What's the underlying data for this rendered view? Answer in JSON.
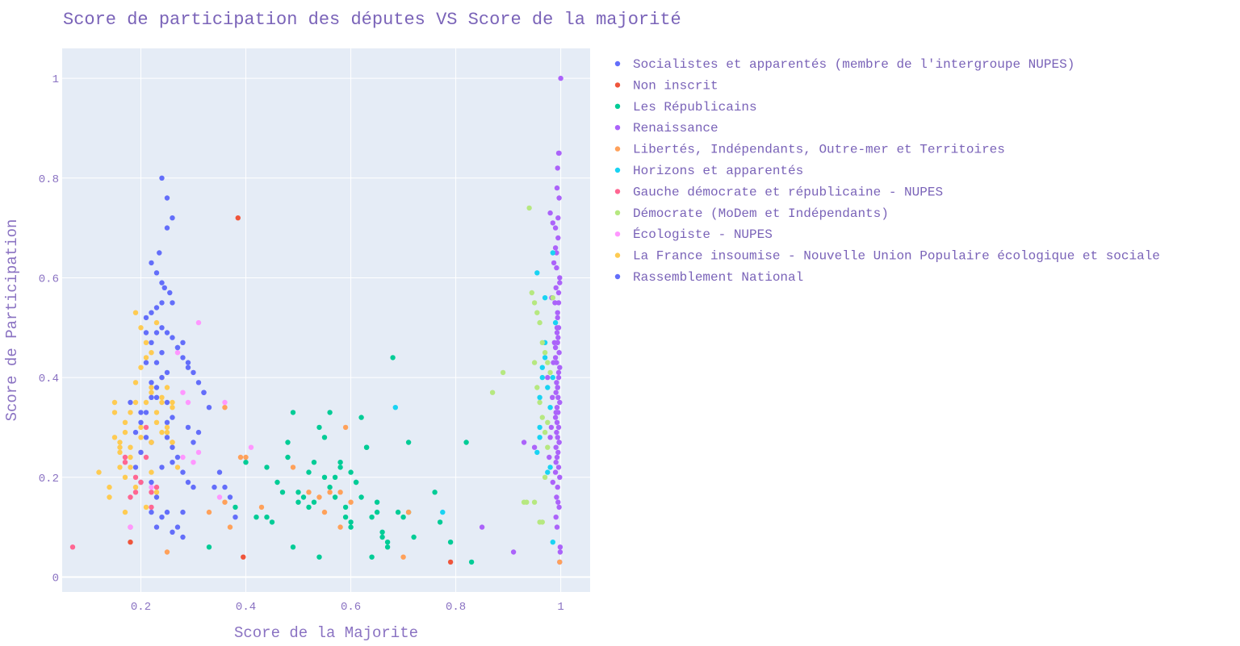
{
  "chart_data": {
    "type": "scatter",
    "title": "Score de participation des députes VS Score de la majorité",
    "xlabel": "Score de la Majorite",
    "ylabel": "Score de Participation",
    "xlim": [
      0.05,
      1.056
    ],
    "ylim": [
      -0.03,
      1.06
    ],
    "xticks": [
      0.2,
      0.4,
      0.6,
      0.8,
      1
    ],
    "yticks": [
      0,
      0.2,
      0.4,
      0.6,
      0.8,
      1
    ],
    "xtick_labels": [
      "0.2",
      "0.4",
      "0.6",
      "0.8",
      "1"
    ],
    "ytick_labels": [
      "0",
      "0.2",
      "0.4",
      "0.6",
      "0.8",
      "1"
    ],
    "grid": true,
    "legend_position": "right",
    "series": [
      {
        "name": "Socialistes et apparentés (membre de l'intergroupe NUPES)",
        "color": "#636efa",
        "x": [
          0.23,
          0.24,
          0.21,
          0.22,
          0.2,
          0.27,
          0.25,
          0.19,
          0.23,
          0.22,
          0.26,
          0.21,
          0.18,
          0.29,
          0.24,
          0.2,
          0.23,
          0.22,
          0.25,
          0.28
        ],
        "y": [
          0.49,
          0.55,
          0.43,
          0.39,
          0.33,
          0.46,
          0.31,
          0.29,
          0.36,
          0.27,
          0.23,
          0.49,
          0.35,
          0.43,
          0.22,
          0.19,
          0.1,
          0.13,
          0.41,
          0.47
        ]
      },
      {
        "name": "Non inscrit",
        "color": "#ef553b",
        "x": [
          0.385,
          0.395,
          0.79,
          0.18
        ],
        "y": [
          0.72,
          0.04,
          0.03,
          0.07
        ]
      },
      {
        "name": "Les Républicains",
        "color": "#00cc96",
        "x": [
          0.42,
          0.44,
          0.46,
          0.48,
          0.49,
          0.5,
          0.51,
          0.52,
          0.53,
          0.54,
          0.55,
          0.56,
          0.57,
          0.58,
          0.59,
          0.6,
          0.61,
          0.62,
          0.63,
          0.64,
          0.65,
          0.66,
          0.67,
          0.68,
          0.69,
          0.7,
          0.71,
          0.72,
          0.76,
          0.77,
          0.79,
          0.83,
          0.4,
          0.45,
          0.47,
          0.49,
          0.52,
          0.54,
          0.56,
          0.58,
          0.6,
          0.62,
          0.64,
          0.66,
          0.53,
          0.57,
          0.61,
          0.63,
          0.67,
          0.55,
          0.5,
          0.48,
          0.59,
          0.65,
          0.44,
          0.38,
          0.33,
          0.82,
          0.71,
          0.6
        ],
        "y": [
          0.12,
          0.22,
          0.19,
          0.27,
          0.33,
          0.17,
          0.16,
          0.21,
          0.15,
          0.3,
          0.28,
          0.33,
          0.2,
          0.23,
          0.12,
          0.1,
          0.19,
          0.32,
          0.26,
          0.04,
          0.15,
          0.09,
          0.07,
          0.44,
          0.13,
          0.12,
          0.27,
          0.08,
          0.17,
          0.11,
          0.07,
          0.03,
          0.23,
          0.11,
          0.17,
          0.06,
          0.14,
          0.04,
          0.18,
          0.22,
          0.11,
          0.16,
          0.12,
          0.08,
          0.23,
          0.16,
          0.19,
          0.26,
          0.06,
          0.2,
          0.15,
          0.24,
          0.14,
          0.13,
          0.12,
          0.14,
          0.06,
          0.27,
          0.13,
          0.21
        ]
      },
      {
        "name": "Renaissance",
        "color": "#ab63fa",
        "x": [
          1.0,
          0.996,
          0.994,
          0.997,
          0.993,
          0.995,
          0.99,
          0.992,
          0.998,
          0.991,
          0.989,
          0.996,
          0.994,
          0.993,
          0.995,
          0.99,
          0.997,
          0.992,
          0.996,
          0.994,
          0.991,
          0.998,
          0.993,
          0.995,
          0.99,
          0.996,
          0.992,
          0.994,
          0.997,
          0.991,
          0.995,
          0.993,
          0.996,
          0.99,
          0.998,
          0.994,
          0.992,
          0.995,
          0.997,
          0.991,
          0.993,
          0.996,
          0.994,
          0.99,
          0.998,
          0.992,
          0.995,
          0.993,
          0.997,
          0.991,
          0.994,
          0.996,
          0.992,
          0.995,
          0.99,
          0.998,
          0.993,
          0.996,
          0.994,
          0.991,
          0.985,
          0.987,
          0.983,
          0.988,
          0.986,
          0.984,
          0.982,
          0.98,
          0.978,
          0.985,
          0.999,
          0.999,
          0.998,
          0.997,
          0.93,
          0.91,
          0.85,
          0.95,
          0.975,
          0.98
        ],
        "y": [
          1.0,
          0.85,
          0.82,
          0.76,
          0.78,
          0.72,
          0.7,
          0.65,
          0.6,
          0.58,
          0.55,
          0.57,
          0.53,
          0.5,
          0.48,
          0.46,
          0.45,
          0.43,
          0.4,
          0.38,
          0.37,
          0.35,
          0.34,
          0.33,
          0.32,
          0.3,
          0.29,
          0.28,
          0.27,
          0.26,
          0.25,
          0.24,
          0.22,
          0.21,
          0.2,
          0.18,
          0.16,
          0.15,
          0.14,
          0.12,
          0.1,
          0.5,
          0.47,
          0.44,
          0.42,
          0.39,
          0.36,
          0.31,
          0.27,
          0.23,
          0.52,
          0.55,
          0.62,
          0.68,
          0.66,
          0.59,
          0.49,
          0.41,
          0.38,
          0.33,
          0.71,
          0.63,
          0.56,
          0.47,
          0.43,
          0.36,
          0.3,
          0.28,
          0.24,
          0.19,
          0.06,
          0.05,
          0.03,
          0.85,
          0.27,
          0.05,
          0.1,
          0.26,
          0.4,
          0.73
        ]
      },
      {
        "name": "Libertés, Indépendants, Outre-mer et Territoires",
        "color": "#ffa15a",
        "x": [
          0.39,
          0.4,
          0.36,
          0.37,
          0.33,
          0.43,
          0.52,
          0.54,
          0.59,
          0.6,
          0.49,
          0.58,
          0.7,
          0.71,
          0.56,
          0.25,
          0.998,
          0.36,
          0.26,
          0.22,
          0.55,
          0.58
        ],
        "y": [
          0.24,
          0.24,
          0.15,
          0.1,
          0.13,
          0.14,
          0.17,
          0.16,
          0.3,
          0.15,
          0.22,
          0.1,
          0.04,
          0.13,
          0.17,
          0.05,
          0.03,
          0.34,
          0.27,
          0.27,
          0.13,
          0.17
        ]
      },
      {
        "name": "Horizons et apparentés",
        "color": "#19d3f3",
        "x": [
          0.97,
          0.965,
          0.975,
          0.98,
          0.96,
          0.955,
          0.985,
          0.97,
          0.975,
          0.98,
          0.96,
          0.965,
          0.99,
          0.985,
          0.97,
          0.775,
          0.685,
          0.955,
          0.96,
          0.985
        ],
        "y": [
          0.56,
          0.42,
          0.38,
          0.34,
          0.28,
          0.25,
          0.65,
          0.47,
          0.21,
          0.22,
          0.36,
          0.4,
          0.51,
          0.07,
          0.44,
          0.13,
          0.34,
          0.61,
          0.3,
          0.4
        ]
      },
      {
        "name": "Gauche démocrate et républicaine - NUPES",
        "color": "#ff6692",
        "x": [
          0.07,
          0.17,
          0.18,
          0.19,
          0.2,
          0.21,
          0.22,
          0.19,
          0.18,
          0.21,
          0.2,
          0.23,
          0.17,
          0.22
        ],
        "y": [
          0.06,
          0.24,
          0.16,
          0.17,
          0.25,
          0.24,
          0.14,
          0.2,
          0.1,
          0.3,
          0.19,
          0.18,
          0.23,
          0.17
        ]
      },
      {
        "name": "Démocrate (MoDem et Indépendants)",
        "color": "#b6e880",
        "x": [
          0.94,
          0.945,
          0.95,
          0.955,
          0.96,
          0.965,
          0.97,
          0.975,
          0.98,
          0.955,
          0.96,
          0.965,
          0.97,
          0.95,
          0.975,
          0.985,
          0.87,
          0.89,
          0.93,
          0.935,
          0.96,
          0.965,
          0.97,
          0.975,
          0.95
        ],
        "y": [
          0.74,
          0.57,
          0.55,
          0.53,
          0.51,
          0.47,
          0.45,
          0.43,
          0.41,
          0.38,
          0.35,
          0.32,
          0.29,
          0.15,
          0.26,
          0.56,
          0.37,
          0.41,
          0.15,
          0.15,
          0.11,
          0.11,
          0.2,
          0.31,
          0.43
        ]
      },
      {
        "name": "Écologiste - NUPES",
        "color": "#ff97ff",
        "x": [
          0.27,
          0.28,
          0.3,
          0.31,
          0.32,
          0.29,
          0.36,
          0.41,
          0.31,
          0.3,
          0.28,
          0.22,
          0.18,
          0.35
        ],
        "y": [
          0.45,
          0.37,
          0.41,
          0.51,
          0.37,
          0.35,
          0.35,
          0.26,
          0.25,
          0.23,
          0.24,
          0.18,
          0.1,
          0.16
        ]
      },
      {
        "name": "La France insoumise - Nouvelle Union Populaire écologique et sociale",
        "color": "#fecb52",
        "x": [
          0.12,
          0.14,
          0.15,
          0.16,
          0.17,
          0.18,
          0.19,
          0.2,
          0.21,
          0.22,
          0.23,
          0.24,
          0.25,
          0.26,
          0.14,
          0.15,
          0.16,
          0.17,
          0.18,
          0.19,
          0.2,
          0.21,
          0.22,
          0.23,
          0.24,
          0.25,
          0.26,
          0.27,
          0.19,
          0.2,
          0.21,
          0.22,
          0.23,
          0.24,
          0.18,
          0.17,
          0.16,
          0.15,
          0.21,
          0.22,
          0.23,
          0.24,
          0.19,
          0.2,
          0.25,
          0.18,
          0.17,
          0.16,
          0.22,
          0.26
        ],
        "y": [
          0.21,
          0.18,
          0.35,
          0.25,
          0.29,
          0.33,
          0.39,
          0.42,
          0.47,
          0.45,
          0.51,
          0.4,
          0.38,
          0.34,
          0.16,
          0.28,
          0.22,
          0.31,
          0.26,
          0.35,
          0.3,
          0.35,
          0.27,
          0.31,
          0.35,
          0.29,
          0.27,
          0.22,
          0.53,
          0.5,
          0.44,
          0.37,
          0.33,
          0.29,
          0.24,
          0.2,
          0.26,
          0.33,
          0.14,
          0.21,
          0.17,
          0.36,
          0.18,
          0.28,
          0.3,
          0.22,
          0.13,
          0.27,
          0.38,
          0.35
        ]
      },
      {
        "name": "Rassemblement National",
        "color": "#636efa",
        "x": [
          0.24,
          0.25,
          0.26,
          0.25,
          0.235,
          0.22,
          0.23,
          0.24,
          0.245,
          0.255,
          0.26,
          0.23,
          0.22,
          0.21,
          0.24,
          0.25,
          0.26,
          0.27,
          0.28,
          0.29,
          0.3,
          0.31,
          0.32,
          0.33,
          0.23,
          0.24,
          0.22,
          0.21,
          0.2,
          0.25,
          0.26,
          0.27,
          0.28,
          0.29,
          0.22,
          0.23,
          0.24,
          0.25,
          0.26,
          0.21,
          0.2,
          0.19,
          0.3,
          0.31,
          0.27,
          0.28,
          0.25,
          0.23,
          0.22,
          0.24,
          0.26,
          0.28,
          0.3,
          0.32,
          0.35,
          0.36,
          0.37,
          0.38,
          0.34,
          0.29
        ],
        "y": [
          0.8,
          0.76,
          0.72,
          0.7,
          0.65,
          0.63,
          0.61,
          0.59,
          0.58,
          0.57,
          0.55,
          0.54,
          0.53,
          0.52,
          0.5,
          0.49,
          0.48,
          0.46,
          0.44,
          0.42,
          0.41,
          0.39,
          0.37,
          0.34,
          0.38,
          0.45,
          0.36,
          0.33,
          0.31,
          0.28,
          0.26,
          0.24,
          0.21,
          0.19,
          0.47,
          0.43,
          0.4,
          0.35,
          0.32,
          0.28,
          0.25,
          0.22,
          0.27,
          0.29,
          0.1,
          0.08,
          0.13,
          0.16,
          0.19,
          0.12,
          0.09,
          0.13,
          0.18,
          0.37,
          0.21,
          0.18,
          0.16,
          0.12,
          0.18,
          0.3
        ]
      }
    ]
  }
}
